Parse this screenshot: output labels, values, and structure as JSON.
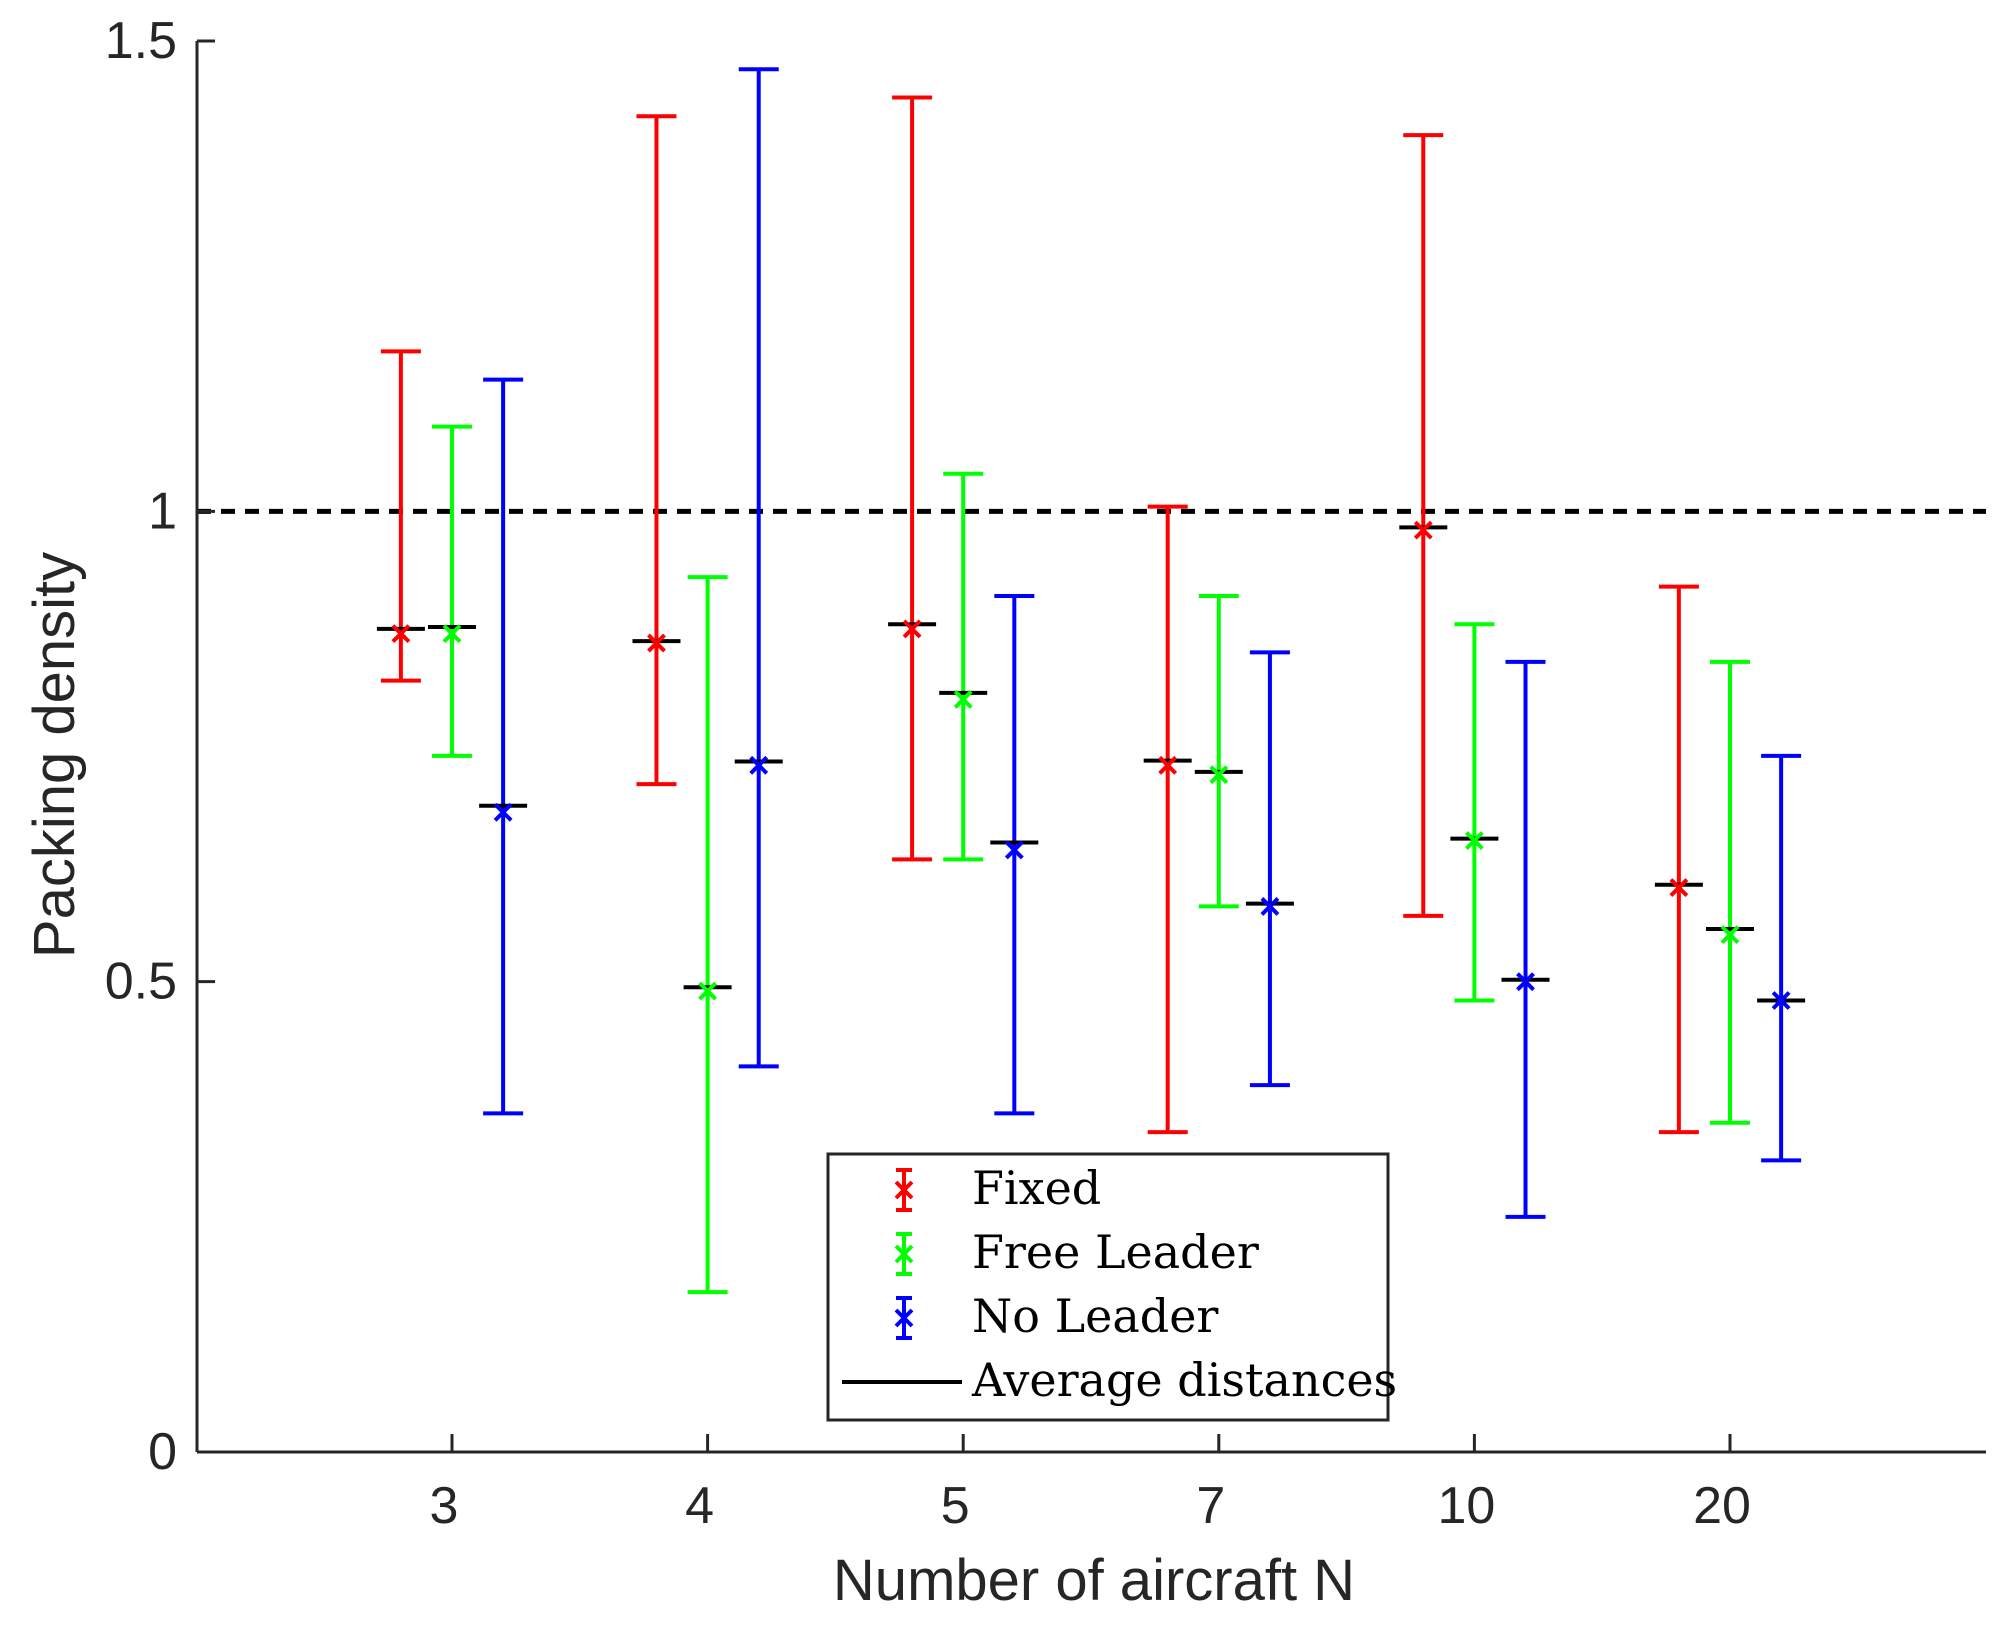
{
  "chart_data": {
    "type": "errorbar",
    "title": "",
    "xlabel": "Number of aircraft N",
    "ylabel": "Packing density",
    "categories": [
      "3",
      "4",
      "5",
      "7",
      "10",
      "20"
    ],
    "ylim": [
      0,
      1.5
    ],
    "yticks": [
      0,
      0.5,
      1,
      1.5
    ],
    "ytick_labels": [
      "0",
      "0.5",
      "1",
      "1.5"
    ],
    "reference_line": {
      "y": 1,
      "style": "dashed",
      "color": "#000000"
    },
    "series": [
      {
        "name": "Fixed",
        "color": "#ff0000",
        "offset": -0.2,
        "mean": [
          0.87,
          0.86,
          0.875,
          0.73,
          0.98,
          0.6
        ],
        "lower": [
          0.82,
          0.71,
          0.63,
          0.34,
          0.57,
          0.34
        ],
        "upper": [
          1.17,
          1.42,
          1.44,
          1.005,
          1.4,
          0.92
        ],
        "avg_distances": [
          0.875,
          0.862,
          0.88,
          0.735,
          0.983,
          0.603
        ]
      },
      {
        "name": "Free Leader",
        "color": "#00ff00",
        "offset": 0,
        "mean": [
          0.87,
          0.49,
          0.8,
          0.72,
          0.65,
          0.55
        ],
        "lower": [
          0.74,
          0.17,
          0.63,
          0.58,
          0.48,
          0.35
        ],
        "upper": [
          1.09,
          0.93,
          1.04,
          0.91,
          0.88,
          0.84
        ],
        "avg_distances": [
          0.877,
          0.494,
          0.807,
          0.723,
          0.652,
          0.556
        ]
      },
      {
        "name": "No Leader",
        "color": "#0000ff",
        "offset": 0.2,
        "mean": [
          0.68,
          0.73,
          0.64,
          0.58,
          0.5,
          0.48
        ],
        "lower": [
          0.36,
          0.41,
          0.36,
          0.39,
          0.25,
          0.31
        ],
        "upper": [
          1.14,
          1.47,
          0.91,
          0.85,
          0.84,
          0.74
        ],
        "avg_distances": [
          0.687,
          0.734,
          0.648,
          0.583,
          0.502,
          0.48
        ]
      }
    ],
    "legend": {
      "position": "bottom-center",
      "entries": [
        "Fixed",
        "Free Leader",
        "No Leader",
        "Average distances"
      ],
      "average_line_color": "#000000"
    }
  }
}
